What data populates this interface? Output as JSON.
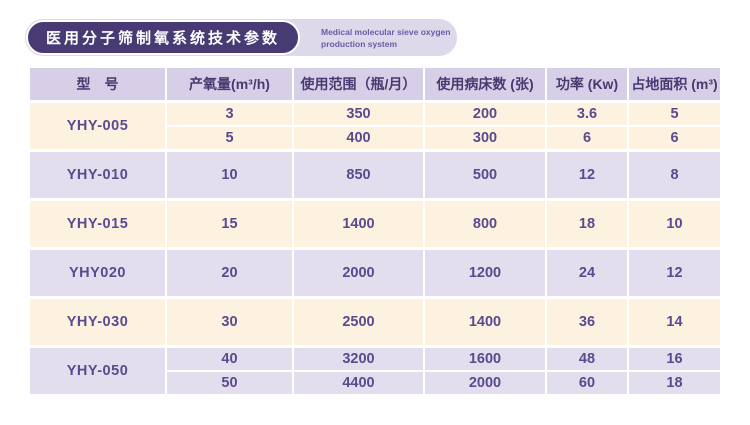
{
  "header": {
    "title_cn": "医用分子筛制氧系统技术参数",
    "subtitle_en_line1": "Medical molecular sieve oxygen",
    "subtitle_en_line2": "production system"
  },
  "table": {
    "columns": [
      "型　号",
      "产氧量(m³/h)",
      "使用范围（瓶/月）",
      "使用病床数 (张)",
      "功率 (Kw)",
      "占地面积 (m³)"
    ],
    "rows": [
      {
        "model": "YHY-005",
        "subrows": [
          [
            "3",
            "350",
            "200",
            "3.6",
            "5"
          ],
          [
            "5",
            "400",
            "300",
            "6",
            "6"
          ]
        ]
      },
      {
        "model": "YHY-010",
        "subrows": [
          [
            "10",
            "850",
            "500",
            "12",
            "8"
          ]
        ]
      },
      {
        "model": "YHY-015",
        "subrows": [
          [
            "15",
            "1400",
            "800",
            "18",
            "10"
          ]
        ]
      },
      {
        "model": "YHY020",
        "subrows": [
          [
            "20",
            "2000",
            "1200",
            "24",
            "12"
          ]
        ]
      },
      {
        "model": "YHY-030",
        "subrows": [
          [
            "30",
            "2500",
            "1400",
            "36",
            "14"
          ]
        ]
      },
      {
        "model": "YHY-050",
        "subrows": [
          [
            "40",
            "3200",
            "1600",
            "48",
            "16"
          ],
          [
            "50",
            "4400",
            "2000",
            "60",
            "18"
          ]
        ]
      }
    ]
  },
  "colors": {
    "banner_dark": "#483a73",
    "banner_light": "#ded8eb",
    "subtitle_text": "#6b5ca5",
    "header_row_bg": "#d7cfe7",
    "row_cream_bg": "#fdf2e0",
    "row_lavender_bg": "#e3deee",
    "cell_text": "#5a4a8e",
    "header_text": "#473a70",
    "page_bg": "#ffffff"
  }
}
